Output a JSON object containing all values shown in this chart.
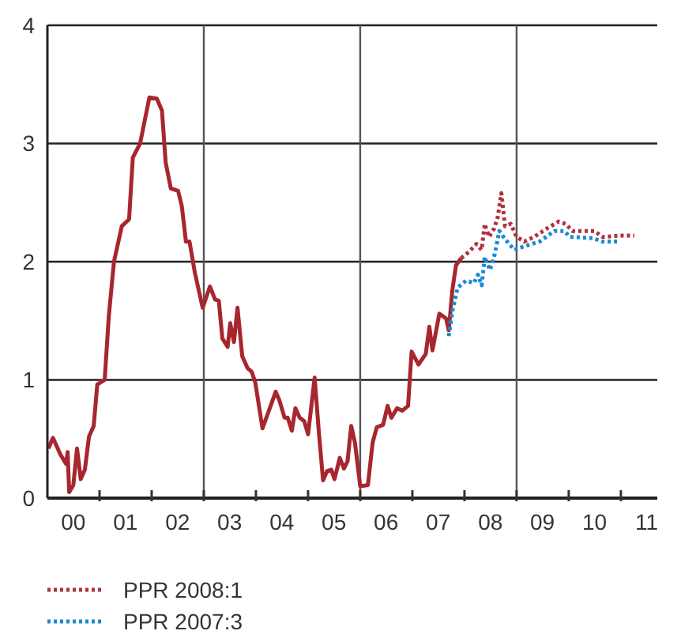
{
  "chart_data": {
    "type": "line",
    "xlim": [
      "2000-01-01",
      "2011-09-13"
    ],
    "xticks": [
      {
        "value": "2000-07-01",
        "label": "00"
      },
      {
        "value": "2001-01-01",
        "label": null
      },
      {
        "value": "2001-07-01",
        "label": "01"
      },
      {
        "value": "2002-01-01",
        "label": null
      },
      {
        "value": "2002-07-01",
        "label": "02"
      },
      {
        "value": "2003-01-01",
        "label": null
      },
      {
        "value": "2003-07-01",
        "label": "03"
      },
      {
        "value": "2004-01-01",
        "label": null
      },
      {
        "value": "2004-07-01",
        "label": "04"
      },
      {
        "value": "2005-01-01",
        "label": null
      },
      {
        "value": "2005-07-01",
        "label": "05"
      },
      {
        "value": "2006-01-01",
        "label": null
      },
      {
        "value": "2006-07-01",
        "label": "06"
      },
      {
        "value": "2007-01-01",
        "label": null
      },
      {
        "value": "2007-07-01",
        "label": "07"
      },
      {
        "value": "2008-01-01",
        "label": null
      },
      {
        "value": "2008-07-01",
        "label": "08"
      },
      {
        "value": "2009-01-01",
        "label": null
      },
      {
        "value": "2009-07-01",
        "label": "09"
      },
      {
        "value": "2010-01-01",
        "label": null
      },
      {
        "value": "2010-07-01",
        "label": "10"
      },
      {
        "value": "2011-01-01",
        "label": null
      },
      {
        "value": "2011-07-01",
        "label": "11"
      }
    ],
    "ylim": [
      0,
      4
    ],
    "yticks": [
      0,
      1,
      2,
      3,
      4
    ],
    "grid": "y",
    "legend": "bottom",
    "marker": "none",
    "ref_lines": [
      {
        "axis": "x",
        "value": "2003-01-01",
        "label": null,
        "color": "#555555"
      },
      {
        "axis": "x",
        "value": "2006-01-01",
        "label": null,
        "color": "#555555"
      },
      {
        "axis": "x",
        "value": "2009-01-01",
        "label": null,
        "color": "#555555"
      }
    ],
    "series": [
      {
        "color": "#a8262e",
        "line_style": "solid",
        "x": [
          "2000-01-08",
          "2000-02-09",
          "2000-04-01",
          "2000-05-11",
          "2000-05-22",
          "2000-06-02",
          "2000-07-01",
          "2000-07-27",
          "2000-08-22",
          "2000-09-20",
          "2000-10-19",
          "2000-11-21",
          "2000-12-16",
          "2001-02-06",
          "2001-03-07",
          "2001-04-12",
          "2001-06-06",
          "2001-07-27",
          "2001-08-22",
          "2001-10-12",
          "2001-12-16",
          "2002-02-06",
          "2002-03-14",
          "2002-04-09",
          "2002-05-15",
          "2002-07-05",
          "2002-07-31",
          "2002-08-29",
          "2002-09-23",
          "2002-10-30",
          "2002-12-24",
          "2003-02-13",
          "2003-03-21",
          "2003-04-16",
          "2003-05-11",
          "2003-06-17",
          "2003-07-05",
          "2003-07-31",
          "2003-08-25",
          "2003-09-27",
          "2003-11-03",
          "2003-12-02",
          "2003-12-27",
          "2004-02-16",
          "2004-05-19",
          "2004-06-13",
          "2004-07-20",
          "2004-08-11",
          "2004-09-09",
          "2004-10-04",
          "2004-11-03",
          "2004-12-05",
          "2005-01-01",
          "2005-02-16",
          "2005-03-18",
          "2005-04-16",
          "2005-05-15",
          "2005-06-13",
          "2005-07-05",
          "2005-08-11",
          "2005-09-09",
          "2005-10-04",
          "2005-10-30",
          "2005-11-25",
          "2006-01-01",
          "2006-02-24",
          "2006-03-29",
          "2006-04-27",
          "2006-06-10",
          "2006-07-12",
          "2006-08-07",
          "2006-09-16",
          "2006-10-23",
          "2006-12-02",
          "2006-12-27",
          "2007-02-13",
          "2007-04-05",
          "2007-04-30",
          "2007-05-22",
          "2007-07-09",
          "2007-08-25",
          "2007-09-13",
          "2007-10-08",
          "2007-11-03",
          "2007-12-09"
        ],
        "values": [
          0.42,
          0.51,
          0.37,
          0.29,
          0.39,
          0.05,
          0.11,
          0.42,
          0.16,
          0.24,
          0.52,
          0.61,
          0.96,
          1.0,
          1.54,
          2.0,
          2.3,
          2.36,
          2.88,
          3.0,
          3.39,
          3.38,
          3.28,
          2.84,
          2.62,
          2.6,
          2.47,
          2.17,
          2.17,
          1.91,
          1.61,
          1.79,
          1.68,
          1.67,
          1.35,
          1.28,
          1.48,
          1.32,
          1.61,
          1.2,
          1.1,
          1.07,
          0.98,
          0.59,
          0.9,
          0.83,
          0.68,
          0.68,
          0.57,
          0.76,
          0.68,
          0.65,
          0.54,
          1.02,
          0.55,
          0.15,
          0.23,
          0.24,
          0.16,
          0.34,
          0.25,
          0.31,
          0.61,
          0.47,
          0.1,
          0.11,
          0.47,
          0.6,
          0.62,
          0.78,
          0.68,
          0.76,
          0.74,
          0.78,
          1.24,
          1.13,
          1.22,
          1.45,
          1.25,
          1.56,
          1.52,
          1.42,
          1.76,
          1.97,
          2.03
        ]
      },
      {
        "name": "PPR 2008:1",
        "color": "#b0323a",
        "line_style": "dotted",
        "x": [
          "2007-12-09",
          "2008-01-30",
          "2008-03-25",
          "2008-05-01",
          "2008-05-22",
          "2008-06-21",
          "2008-07-27",
          "2008-08-22",
          "2008-09-16",
          "2008-10-12",
          "2008-11-21",
          "2009-01-01",
          "2009-02-24",
          "2009-05-04",
          "2009-07-31",
          "2009-10-23",
          "2009-12-09",
          "2010-01-27",
          "2010-07-01",
          "2010-08-25",
          "2010-12-27",
          "2011-04-05"
        ],
        "values": [
          2.03,
          2.08,
          2.15,
          2.1,
          2.32,
          2.21,
          2.28,
          2.38,
          2.58,
          2.3,
          2.32,
          2.21,
          2.17,
          2.21,
          2.28,
          2.34,
          2.32,
          2.26,
          2.26,
          2.21,
          2.22,
          2.22
        ]
      },
      {
        "name": "PPR 2007:3",
        "color": "#1a8ad4",
        "line_style": "dotted",
        "x": [
          "2007-09-13",
          "2007-10-08",
          "2007-11-14",
          "2008-01-12",
          "2008-03-07",
          "2008-04-05",
          "2008-05-01",
          "2008-05-22",
          "2008-06-28",
          "2008-07-27",
          "2008-09-02",
          "2008-10-12",
          "2008-12-16",
          "2009-02-24",
          "2009-06-10",
          "2009-09-23",
          "2009-12-02",
          "2010-01-08",
          "2010-06-17",
          "2010-08-25",
          "2010-12-09"
        ],
        "values": [
          1.37,
          1.58,
          1.78,
          1.84,
          1.82,
          1.89,
          1.8,
          2.04,
          1.93,
          2.04,
          2.26,
          2.19,
          2.1,
          2.13,
          2.17,
          2.26,
          2.26,
          2.21,
          2.2,
          2.17,
          2.17
        ]
      }
    ]
  }
}
